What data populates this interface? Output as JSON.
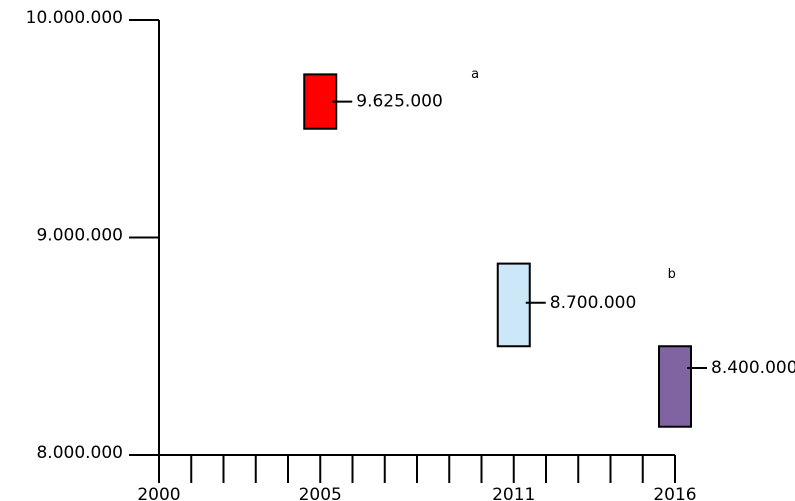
{
  "chart_data": {
    "type": "bar",
    "title": "",
    "xlabel": "",
    "ylabel": "",
    "ylim": [
      8000000,
      10000000
    ],
    "xlim": [
      2000,
      2016
    ],
    "y_ticks": [
      {
        "value": 10000000,
        "label": "10.000.000"
      },
      {
        "value": 9000000,
        "label": "9.000.000"
      },
      {
        "value": 8000000,
        "label": "8.000.000"
      }
    ],
    "x_ticks": [
      {
        "value": 2000,
        "label": "2000"
      },
      {
        "value": 2005,
        "label": "2005"
      },
      {
        "value": 2011,
        "label": "2011"
      },
      {
        "value": 2016,
        "label": "2016"
      }
    ],
    "x_minor_tick_step": 1,
    "grid": false,
    "legend": "none",
    "points": [
      {
        "year": 2005,
        "value": 9625000,
        "label": "9.625.000",
        "box_low": 9500000,
        "box_high": 9750000,
        "color": "#ff0000"
      },
      {
        "year": 2011,
        "value": 8700000,
        "label": "8.700.000",
        "box_low": 8500000,
        "box_high": 8880000,
        "color": "#cce8f8"
      },
      {
        "year": 2016,
        "value": 8400000,
        "label": "8.400.000",
        "box_low": 8130000,
        "box_high": 8500000,
        "color": "#8064a2"
      }
    ],
    "annotations": [
      {
        "text": "a",
        "year": 2009.8,
        "value": 9750000
      },
      {
        "text": "b",
        "year": 2015.9,
        "value": 8830000
      }
    ]
  }
}
